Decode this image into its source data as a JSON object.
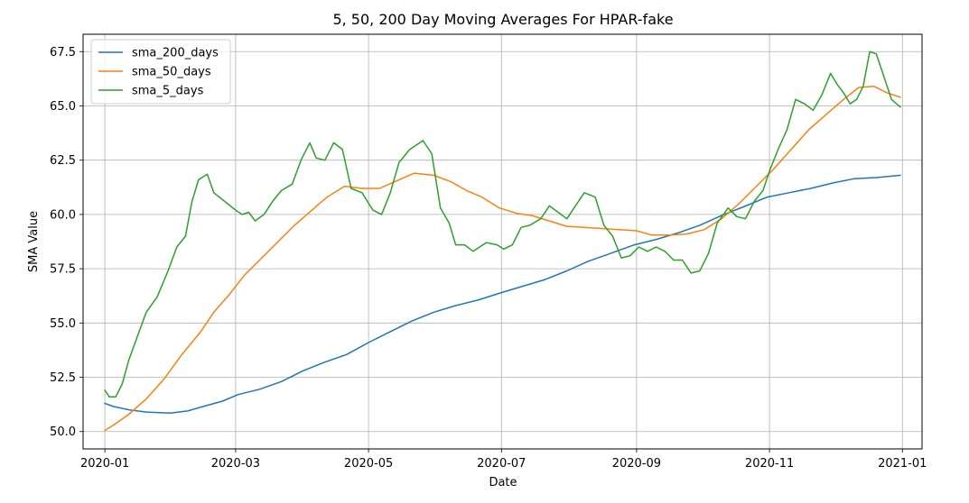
{
  "chart_data": {
    "type": "line",
    "title": "5, 50, 200 Day Moving Averages For HPAR-fake",
    "xlabel": "Date",
    "ylabel": "SMA Value",
    "x_range": [
      "2019-12-22",
      "2021-01-10"
    ],
    "ylim": [
      49.2,
      68.3
    ],
    "grid": true,
    "legend_position": "top-left",
    "x_ticks": [
      {
        "date": "2020-01-01",
        "label": "2020-01"
      },
      {
        "date": "2020-03-01",
        "label": "2020-03"
      },
      {
        "date": "2020-05-01",
        "label": "2020-05"
      },
      {
        "date": "2020-07-01",
        "label": "2020-07"
      },
      {
        "date": "2020-09-01",
        "label": "2020-09"
      },
      {
        "date": "2020-11-01",
        "label": "2020-11"
      },
      {
        "date": "2021-01-01",
        "label": "2021-01"
      }
    ],
    "y_ticks": [
      {
        "value": 50.0,
        "label": "50.0"
      },
      {
        "value": 52.5,
        "label": "52.5"
      },
      {
        "value": 55.0,
        "label": "55.0"
      },
      {
        "value": 57.5,
        "label": "57.5"
      },
      {
        "value": 60.0,
        "label": "60.0"
      },
      {
        "value": 62.5,
        "label": "62.5"
      },
      {
        "value": 65.0,
        "label": "65.0"
      },
      {
        "value": 67.5,
        "label": "67.5"
      }
    ],
    "series": [
      {
        "name": "sma_200_days",
        "color": "#1f77b4",
        "points": [
          [
            "2020-01-01",
            51.3
          ],
          [
            "2020-01-05",
            51.15
          ],
          [
            "2020-01-12",
            51.0
          ],
          [
            "2020-01-20",
            50.9
          ],
          [
            "2020-01-31",
            50.85
          ],
          [
            "2020-02-08",
            50.95
          ],
          [
            "2020-02-15",
            51.15
          ],
          [
            "2020-02-24",
            51.4
          ],
          [
            "2020-03-02",
            51.7
          ],
          [
            "2020-03-12",
            51.95
          ],
          [
            "2020-03-22",
            52.3
          ],
          [
            "2020-04-01",
            52.8
          ],
          [
            "2020-04-11",
            53.2
          ],
          [
            "2020-04-21",
            53.55
          ],
          [
            "2020-05-01",
            54.1
          ],
          [
            "2020-05-11",
            54.6
          ],
          [
            "2020-05-21",
            55.1
          ],
          [
            "2020-05-31",
            55.5
          ],
          [
            "2020-06-10",
            55.8
          ],
          [
            "2020-06-20",
            56.05
          ],
          [
            "2020-07-01",
            56.4
          ],
          [
            "2020-07-11",
            56.7
          ],
          [
            "2020-07-21",
            57.0
          ],
          [
            "2020-07-31",
            57.4
          ],
          [
            "2020-08-10",
            57.85
          ],
          [
            "2020-08-20",
            58.2
          ],
          [
            "2020-08-31",
            58.6
          ],
          [
            "2020-09-10",
            58.85
          ],
          [
            "2020-09-20",
            59.15
          ],
          [
            "2020-09-30",
            59.5
          ],
          [
            "2020-10-10",
            59.95
          ],
          [
            "2020-10-20",
            60.35
          ],
          [
            "2020-10-31",
            60.8
          ],
          [
            "2020-11-10",
            61.0
          ],
          [
            "2020-11-20",
            61.2
          ],
          [
            "2020-11-30",
            61.45
          ],
          [
            "2020-12-10",
            61.65
          ],
          [
            "2020-12-20",
            61.7
          ],
          [
            "2020-12-31",
            61.8
          ]
        ]
      },
      {
        "name": "sma_50_days",
        "color": "#ff7f0e",
        "points": [
          [
            "2020-01-01",
            50.05
          ],
          [
            "2020-01-05",
            50.3
          ],
          [
            "2020-01-12",
            50.8
          ],
          [
            "2020-01-20",
            51.5
          ],
          [
            "2020-01-28",
            52.4
          ],
          [
            "2020-02-05",
            53.5
          ],
          [
            "2020-02-14",
            54.6
          ],
          [
            "2020-02-20",
            55.5
          ],
          [
            "2020-02-27",
            56.3
          ],
          [
            "2020-03-05",
            57.2
          ],
          [
            "2020-03-12",
            57.9
          ],
          [
            "2020-03-20",
            58.7
          ],
          [
            "2020-03-28",
            59.5
          ],
          [
            "2020-04-05",
            60.2
          ],
          [
            "2020-04-12",
            60.8
          ],
          [
            "2020-04-20",
            61.3
          ],
          [
            "2020-04-28",
            61.2
          ],
          [
            "2020-05-06",
            61.2
          ],
          [
            "2020-05-15",
            61.6
          ],
          [
            "2020-05-22",
            61.9
          ],
          [
            "2020-05-31",
            61.8
          ],
          [
            "2020-06-08",
            61.5
          ],
          [
            "2020-06-15",
            61.1
          ],
          [
            "2020-06-22",
            60.8
          ],
          [
            "2020-06-30",
            60.3
          ],
          [
            "2020-07-08",
            60.05
          ],
          [
            "2020-07-15",
            59.95
          ],
          [
            "2020-07-23",
            59.7
          ],
          [
            "2020-07-31",
            59.45
          ],
          [
            "2020-08-08",
            59.4
          ],
          [
            "2020-08-16",
            59.35
          ],
          [
            "2020-08-24",
            59.3
          ],
          [
            "2020-09-01",
            59.25
          ],
          [
            "2020-09-08",
            59.05
          ],
          [
            "2020-09-16",
            59.05
          ],
          [
            "2020-09-24",
            59.1
          ],
          [
            "2020-10-02",
            59.3
          ],
          [
            "2020-10-10",
            59.8
          ],
          [
            "2020-10-18",
            60.5
          ],
          [
            "2020-10-26",
            61.3
          ],
          [
            "2020-11-03",
            62.1
          ],
          [
            "2020-11-11",
            63.0
          ],
          [
            "2020-11-19",
            63.9
          ],
          [
            "2020-11-27",
            64.6
          ],
          [
            "2020-12-05",
            65.3
          ],
          [
            "2020-12-12",
            65.85
          ],
          [
            "2020-12-19",
            65.9
          ],
          [
            "2020-12-25",
            65.6
          ],
          [
            "2020-12-31",
            65.4
          ]
        ]
      },
      {
        "name": "sma_5_days",
        "color": "#2ca02c",
        "points": [
          [
            "2020-01-01",
            51.9
          ],
          [
            "2020-01-03",
            51.6
          ],
          [
            "2020-01-06",
            51.6
          ],
          [
            "2020-01-09",
            52.2
          ],
          [
            "2020-01-12",
            53.3
          ],
          [
            "2020-01-16",
            54.4
          ],
          [
            "2020-01-20",
            55.5
          ],
          [
            "2020-01-25",
            56.2
          ],
          [
            "2020-01-30",
            57.4
          ],
          [
            "2020-02-03",
            58.5
          ],
          [
            "2020-02-07",
            59.0
          ],
          [
            "2020-02-10",
            60.6
          ],
          [
            "2020-02-13",
            61.6
          ],
          [
            "2020-02-17",
            61.85
          ],
          [
            "2020-02-20",
            61.0
          ],
          [
            "2020-02-25",
            60.6
          ],
          [
            "2020-03-01",
            60.2
          ],
          [
            "2020-03-04",
            60.0
          ],
          [
            "2020-03-07",
            60.1
          ],
          [
            "2020-03-10",
            59.7
          ],
          [
            "2020-03-14",
            60.0
          ],
          [
            "2020-03-18",
            60.6
          ],
          [
            "2020-03-22",
            61.1
          ],
          [
            "2020-03-27",
            61.4
          ],
          [
            "2020-03-31",
            62.5
          ],
          [
            "2020-04-04",
            63.3
          ],
          [
            "2020-04-07",
            62.6
          ],
          [
            "2020-04-11",
            62.5
          ],
          [
            "2020-04-15",
            63.3
          ],
          [
            "2020-04-19",
            63.0
          ],
          [
            "2020-04-23",
            61.2
          ],
          [
            "2020-04-28",
            61.0
          ],
          [
            "2020-05-03",
            60.2
          ],
          [
            "2020-05-07",
            60.0
          ],
          [
            "2020-05-11",
            61.0
          ],
          [
            "2020-05-15",
            62.4
          ],
          [
            "2020-05-20",
            63.0
          ],
          [
            "2020-05-26",
            63.4
          ],
          [
            "2020-05-30",
            62.8
          ],
          [
            "2020-06-03",
            60.3
          ],
          [
            "2020-06-07",
            59.6
          ],
          [
            "2020-06-10",
            58.6
          ],
          [
            "2020-06-14",
            58.6
          ],
          [
            "2020-06-18",
            58.3
          ],
          [
            "2020-06-24",
            58.7
          ],
          [
            "2020-06-29",
            58.6
          ],
          [
            "2020-07-02",
            58.4
          ],
          [
            "2020-07-06",
            58.6
          ],
          [
            "2020-07-10",
            59.4
          ],
          [
            "2020-07-14",
            59.5
          ],
          [
            "2020-07-19",
            59.8
          ],
          [
            "2020-07-23",
            60.4
          ],
          [
            "2020-07-27",
            60.1
          ],
          [
            "2020-07-31",
            59.8
          ],
          [
            "2020-08-04",
            60.4
          ],
          [
            "2020-08-08",
            61.0
          ],
          [
            "2020-08-13",
            60.8
          ],
          [
            "2020-08-17",
            59.5
          ],
          [
            "2020-08-21",
            59.0
          ],
          [
            "2020-08-25",
            58.0
          ],
          [
            "2020-08-29",
            58.1
          ],
          [
            "2020-09-02",
            58.5
          ],
          [
            "2020-09-06",
            58.3
          ],
          [
            "2020-09-10",
            58.5
          ],
          [
            "2020-09-14",
            58.3
          ],
          [
            "2020-09-18",
            57.9
          ],
          [
            "2020-09-22",
            57.9
          ],
          [
            "2020-09-26",
            57.3
          ],
          [
            "2020-09-30",
            57.4
          ],
          [
            "2020-10-04",
            58.2
          ],
          [
            "2020-10-08",
            59.6
          ],
          [
            "2020-10-13",
            60.3
          ],
          [
            "2020-10-17",
            59.9
          ],
          [
            "2020-10-21",
            59.8
          ],
          [
            "2020-10-25",
            60.6
          ],
          [
            "2020-10-29",
            61.1
          ],
          [
            "2020-11-01",
            62.0
          ],
          [
            "2020-11-05",
            63.0
          ],
          [
            "2020-11-09",
            63.9
          ],
          [
            "2020-11-13",
            65.3
          ],
          [
            "2020-11-17",
            65.1
          ],
          [
            "2020-11-21",
            64.8
          ],
          [
            "2020-11-25",
            65.5
          ],
          [
            "2020-11-29",
            66.5
          ],
          [
            "2020-12-02",
            66.0
          ],
          [
            "2020-12-05",
            65.6
          ],
          [
            "2020-12-08",
            65.1
          ],
          [
            "2020-12-11",
            65.3
          ],
          [
            "2020-12-14",
            65.9
          ],
          [
            "2020-12-17",
            67.5
          ],
          [
            "2020-12-20",
            67.4
          ],
          [
            "2020-12-24",
            66.2
          ],
          [
            "2020-12-27",
            65.3
          ],
          [
            "2020-12-31",
            64.95
          ]
        ]
      }
    ]
  }
}
